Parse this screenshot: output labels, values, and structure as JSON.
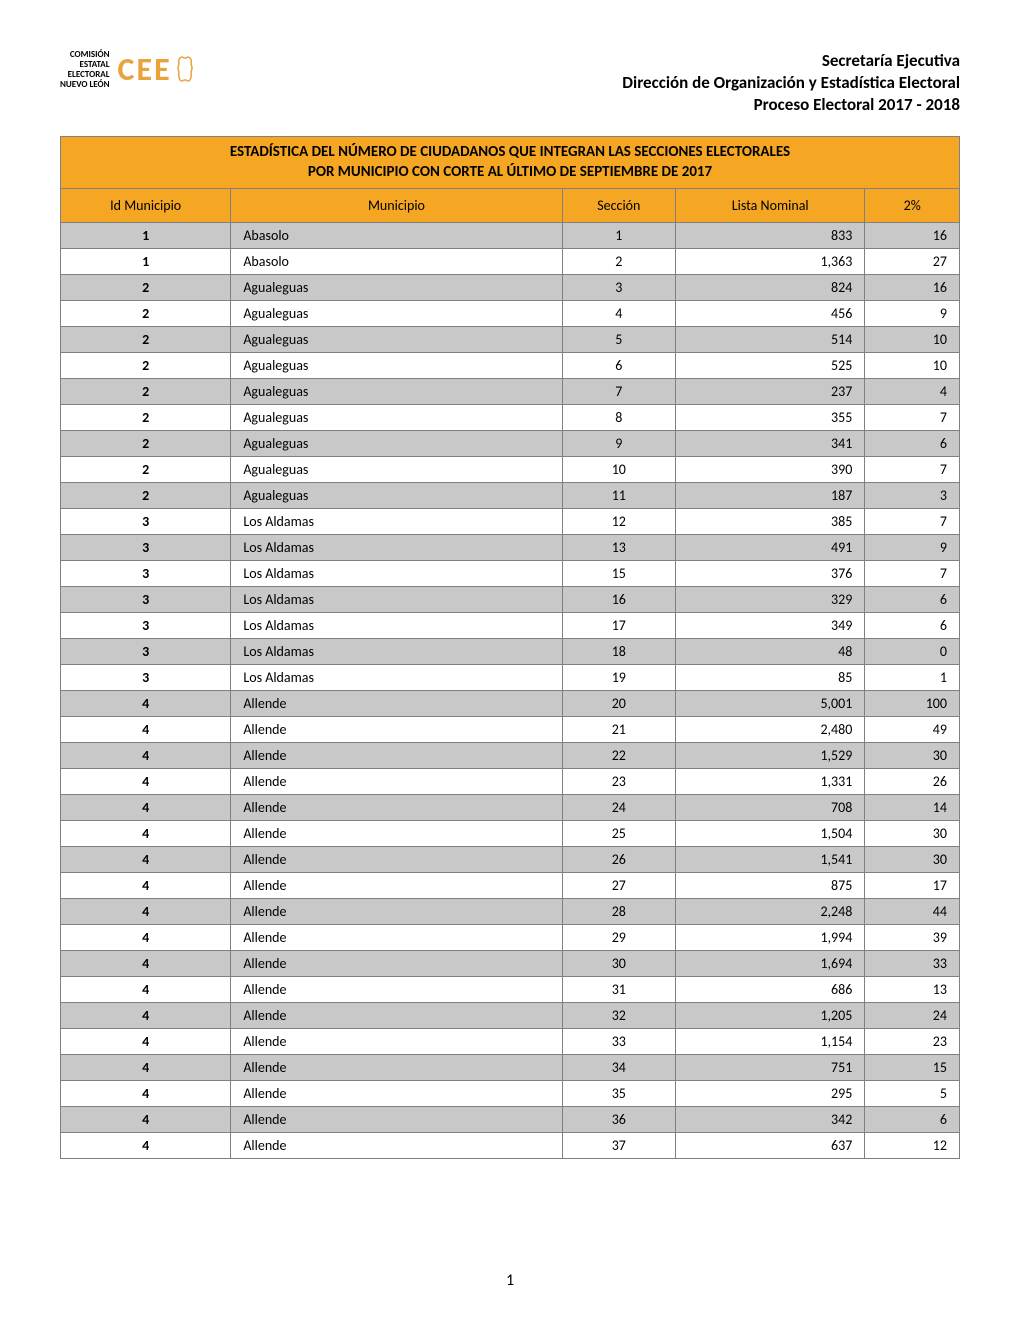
{
  "logo": {
    "line1": "COMISIÓN",
    "line2": "ESTATAL",
    "line3": "ELECTORAL",
    "line4": "NUEVO LEÓN",
    "cee_text": "CEE",
    "cee_color": "#e8a33d"
  },
  "header": {
    "line1": "Secretaría Ejecutiva",
    "line2": "Dirección de Organización y Estadística Electoral",
    "line3": "Proceso Electoral 2017 - 2018"
  },
  "table_title": {
    "line1": "ESTADÍSTICA DEL NÚMERO DE CIUDADANOS QUE INTEGRAN LAS SECCIONES ELECTORALES",
    "line2": "POR MUNICIPIO CON CORTE AL ÚLTIMO DE SEPTIEMBRE DE 2017"
  },
  "columns": {
    "c0": "Id Municipio",
    "c1": "Municipio",
    "c2": "Sección",
    "c3": "Lista Nominal",
    "c4": "2%"
  },
  "colors": {
    "header_bg": "#f5a623",
    "row_odd_bg": "#c8c8c8",
    "row_even_bg": "#ffffff",
    "border": "#808080",
    "text": "#000000"
  },
  "rows": [
    {
      "id": "1",
      "municipio": "Abasolo",
      "seccion": "1",
      "lista": "833",
      "pct": "16"
    },
    {
      "id": "1",
      "municipio": "Abasolo",
      "seccion": "2",
      "lista": "1,363",
      "pct": "27"
    },
    {
      "id": "2",
      "municipio": "Agualeguas",
      "seccion": "3",
      "lista": "824",
      "pct": "16"
    },
    {
      "id": "2",
      "municipio": "Agualeguas",
      "seccion": "4",
      "lista": "456",
      "pct": "9"
    },
    {
      "id": "2",
      "municipio": "Agualeguas",
      "seccion": "5",
      "lista": "514",
      "pct": "10"
    },
    {
      "id": "2",
      "municipio": "Agualeguas",
      "seccion": "6",
      "lista": "525",
      "pct": "10"
    },
    {
      "id": "2",
      "municipio": "Agualeguas",
      "seccion": "7",
      "lista": "237",
      "pct": "4"
    },
    {
      "id": "2",
      "municipio": "Agualeguas",
      "seccion": "8",
      "lista": "355",
      "pct": "7"
    },
    {
      "id": "2",
      "municipio": "Agualeguas",
      "seccion": "9",
      "lista": "341",
      "pct": "6"
    },
    {
      "id": "2",
      "municipio": "Agualeguas",
      "seccion": "10",
      "lista": "390",
      "pct": "7"
    },
    {
      "id": "2",
      "municipio": "Agualeguas",
      "seccion": "11",
      "lista": "187",
      "pct": "3"
    },
    {
      "id": "3",
      "municipio": "Los Aldamas",
      "seccion": "12",
      "lista": "385",
      "pct": "7"
    },
    {
      "id": "3",
      "municipio": "Los Aldamas",
      "seccion": "13",
      "lista": "491",
      "pct": "9"
    },
    {
      "id": "3",
      "municipio": "Los Aldamas",
      "seccion": "15",
      "lista": "376",
      "pct": "7"
    },
    {
      "id": "3",
      "municipio": "Los Aldamas",
      "seccion": "16",
      "lista": "329",
      "pct": "6"
    },
    {
      "id": "3",
      "municipio": "Los Aldamas",
      "seccion": "17",
      "lista": "349",
      "pct": "6"
    },
    {
      "id": "3",
      "municipio": "Los Aldamas",
      "seccion": "18",
      "lista": "48",
      "pct": "0"
    },
    {
      "id": "3",
      "municipio": "Los Aldamas",
      "seccion": "19",
      "lista": "85",
      "pct": "1"
    },
    {
      "id": "4",
      "municipio": "Allende",
      "seccion": "20",
      "lista": "5,001",
      "pct": "100"
    },
    {
      "id": "4",
      "municipio": "Allende",
      "seccion": "21",
      "lista": "2,480",
      "pct": "49"
    },
    {
      "id": "4",
      "municipio": "Allende",
      "seccion": "22",
      "lista": "1,529",
      "pct": "30"
    },
    {
      "id": "4",
      "municipio": "Allende",
      "seccion": "23",
      "lista": "1,331",
      "pct": "26"
    },
    {
      "id": "4",
      "municipio": "Allende",
      "seccion": "24",
      "lista": "708",
      "pct": "14"
    },
    {
      "id": "4",
      "municipio": "Allende",
      "seccion": "25",
      "lista": "1,504",
      "pct": "30"
    },
    {
      "id": "4",
      "municipio": "Allende",
      "seccion": "26",
      "lista": "1,541",
      "pct": "30"
    },
    {
      "id": "4",
      "municipio": "Allende",
      "seccion": "27",
      "lista": "875",
      "pct": "17"
    },
    {
      "id": "4",
      "municipio": "Allende",
      "seccion": "28",
      "lista": "2,248",
      "pct": "44"
    },
    {
      "id": "4",
      "municipio": "Allende",
      "seccion": "29",
      "lista": "1,994",
      "pct": "39"
    },
    {
      "id": "4",
      "municipio": "Allende",
      "seccion": "30",
      "lista": "1,694",
      "pct": "33"
    },
    {
      "id": "4",
      "municipio": "Allende",
      "seccion": "31",
      "lista": "686",
      "pct": "13"
    },
    {
      "id": "4",
      "municipio": "Allende",
      "seccion": "32",
      "lista": "1,205",
      "pct": "24"
    },
    {
      "id": "4",
      "municipio": "Allende",
      "seccion": "33",
      "lista": "1,154",
      "pct": "23"
    },
    {
      "id": "4",
      "municipio": "Allende",
      "seccion": "34",
      "lista": "751",
      "pct": "15"
    },
    {
      "id": "4",
      "municipio": "Allende",
      "seccion": "35",
      "lista": "295",
      "pct": "5"
    },
    {
      "id": "4",
      "municipio": "Allende",
      "seccion": "36",
      "lista": "342",
      "pct": "6"
    },
    {
      "id": "4",
      "municipio": "Allende",
      "seccion": "37",
      "lista": "637",
      "pct": "12"
    }
  ],
  "page_number": "1"
}
